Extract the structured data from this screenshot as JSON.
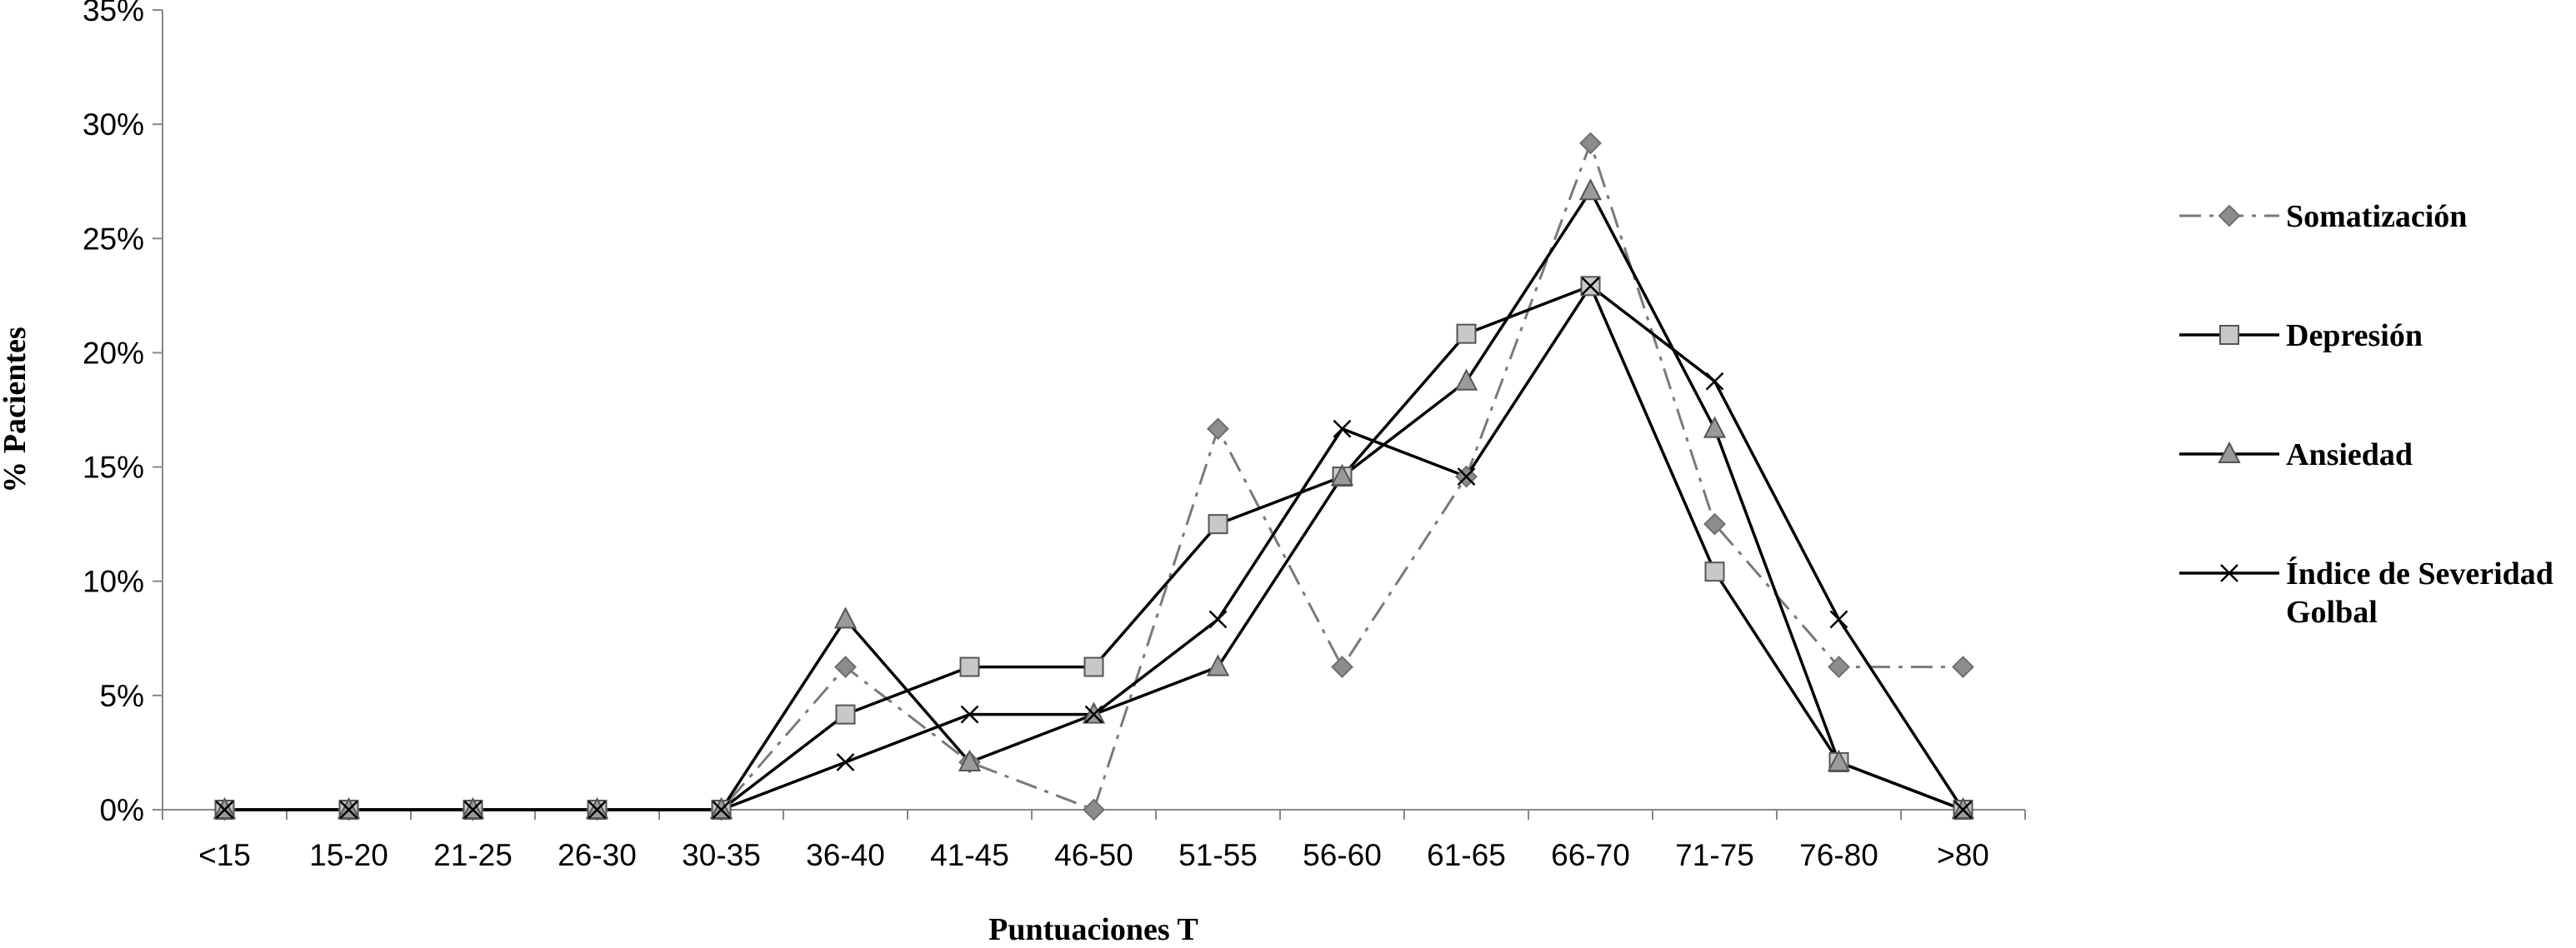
{
  "chart_data": {
    "type": "line",
    "title": "",
    "xlabel": "Puntuaciones T",
    "ylabel": "% Pacientes",
    "categories": [
      "<15",
      "15-20",
      "21-25",
      "26-30",
      "30-35",
      "36-40",
      "41-45",
      "46-50",
      "51-55",
      "56-60",
      "61-65",
      "66-70",
      "71-75",
      "76-80",
      ">80"
    ],
    "ylim": [
      0,
      35
    ],
    "yticks": [
      0,
      5,
      10,
      15,
      20,
      25,
      30,
      35
    ],
    "ytick_labels": [
      "0%",
      "5%",
      "10%",
      "15%",
      "20%",
      "25%",
      "30%",
      "35%"
    ],
    "grid": false,
    "legend_position": "right",
    "series": [
      {
        "name": "Somatización",
        "marker": "diamond",
        "line_style": "dash-dot",
        "color": "#7a7a7a",
        "values": [
          0,
          0,
          0,
          0,
          0,
          6.25,
          2.08,
          0,
          16.67,
          6.25,
          14.58,
          29.17,
          12.5,
          6.25,
          6.25
        ]
      },
      {
        "name": "Depresión",
        "marker": "square",
        "line_style": "solid",
        "color": "#000000",
        "values": [
          0,
          0,
          0,
          0,
          0,
          4.17,
          6.25,
          6.25,
          12.5,
          14.58,
          20.83,
          22.92,
          10.42,
          2.08,
          0
        ]
      },
      {
        "name": "Ansiedad",
        "marker": "triangle",
        "line_style": "solid",
        "color": "#000000",
        "values": [
          0,
          0,
          0,
          0,
          0,
          8.33,
          2.08,
          4.17,
          6.25,
          14.58,
          18.75,
          27.08,
          16.67,
          2.08,
          0
        ]
      },
      {
        "name_lines": [
          "Índice de Severidad",
          "Golbal"
        ],
        "marker": "x",
        "line_style": "solid",
        "color": "#000000",
        "values": [
          0,
          0,
          0,
          0,
          0,
          2.08,
          4.17,
          4.17,
          8.33,
          16.67,
          14.58,
          22.92,
          18.75,
          8.33,
          0
        ]
      }
    ]
  }
}
